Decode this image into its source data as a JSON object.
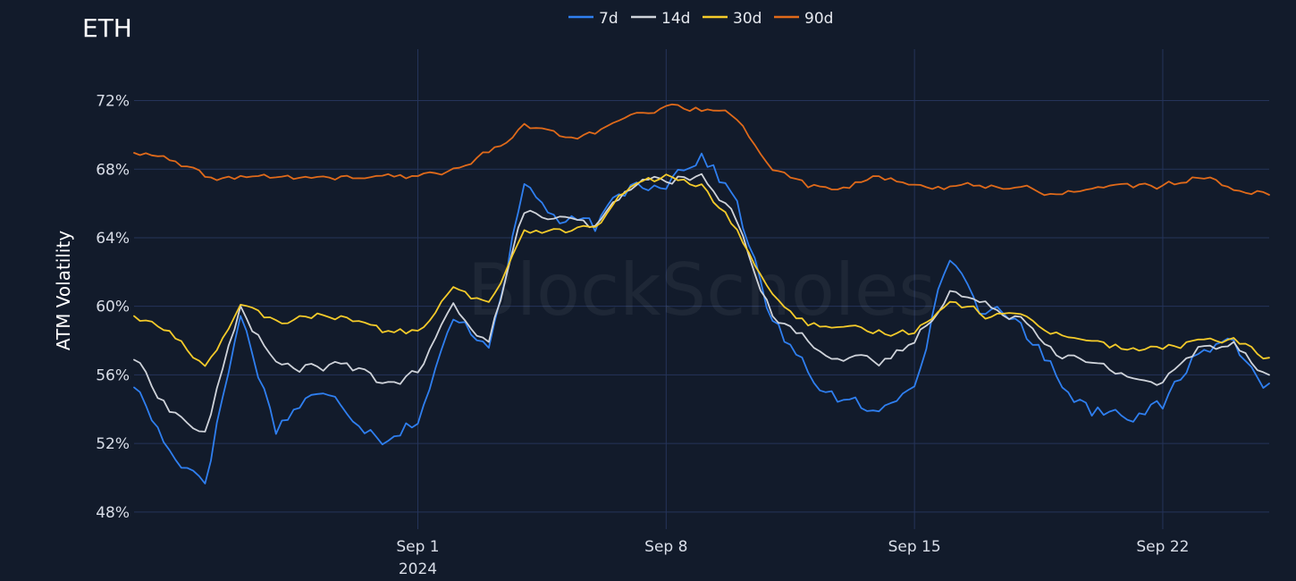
{
  "chart_data": {
    "type": "line",
    "title": "ETH",
    "ylabel": "ATM Volatility",
    "xlabel": "",
    "watermark": "BlockScholes",
    "ylim": [
      47,
      75
    ],
    "xlim": [
      "2024-08-24",
      "2024-09-25"
    ],
    "yticks": [
      48,
      52,
      56,
      60,
      64,
      68,
      72
    ],
    "ytick_labels": [
      "48%",
      "52%",
      "56%",
      "60%",
      "64%",
      "68%",
      "72%"
    ],
    "xticks": [
      "2024-09-01",
      "2024-09-08",
      "2024-09-15",
      "2024-09-22"
    ],
    "xtick_labels": [
      "Sep 1",
      "Sep 8",
      "Sep 15",
      "Sep 22"
    ],
    "xtick_sublabel": "2024",
    "legend_position": "top-center",
    "grid": true,
    "x": [
      "2024-08-24",
      "2024-08-25",
      "2024-08-26",
      "2024-08-27",
      "2024-08-28",
      "2024-08-29",
      "2024-08-30",
      "2024-08-31",
      "2024-09-01",
      "2024-09-02",
      "2024-09-03",
      "2024-09-04",
      "2024-09-05",
      "2024-09-06",
      "2024-09-07",
      "2024-09-08",
      "2024-09-09",
      "2024-09-10",
      "2024-09-11",
      "2024-09-12",
      "2024-09-13",
      "2024-09-14",
      "2024-09-15",
      "2024-09-16",
      "2024-09-17",
      "2024-09-18",
      "2024-09-19",
      "2024-09-20",
      "2024-09-21",
      "2024-09-22",
      "2024-09-23",
      "2024-09-24",
      "2024-09-25"
    ],
    "series": [
      {
        "name": "7d",
        "color": "#2f7ff0",
        "values": [
          55.5,
          51.5,
          50.0,
          59.5,
          53.0,
          55.0,
          54.0,
          52.5,
          53.5,
          59.0,
          58.0,
          67.0,
          65.0,
          64.5,
          67.0,
          67.5,
          69.0,
          66.0,
          59.0,
          56.0,
          54.5,
          53.5,
          56.0,
          63.0,
          59.5,
          59.0,
          56.0,
          54.0,
          54.0,
          54.0,
          57.5,
          58.0,
          55.5
        ]
      },
      {
        "name": "14d",
        "color": "#cfd3da",
        "values": [
          57.0,
          54.0,
          52.5,
          60.0,
          56.5,
          56.5,
          56.5,
          55.5,
          56.0,
          60.0,
          58.0,
          65.5,
          65.0,
          64.5,
          67.0,
          67.5,
          67.5,
          65.0,
          59.5,
          58.0,
          57.0,
          56.5,
          58.0,
          61.0,
          60.0,
          59.5,
          57.5,
          56.5,
          56.0,
          55.5,
          57.5,
          58.0,
          56.0
        ]
      },
      {
        "name": "30d",
        "color": "#f5cb2a",
        "values": [
          59.5,
          58.5,
          56.5,
          60.0,
          59.0,
          59.5,
          59.5,
          58.5,
          58.5,
          61.0,
          60.0,
          64.5,
          64.5,
          64.5,
          67.0,
          67.5,
          67.0,
          64.5,
          60.5,
          59.0,
          58.5,
          58.5,
          58.5,
          60.5,
          59.5,
          59.5,
          58.5,
          58.0,
          57.5,
          57.5,
          58.0,
          58.0,
          57.0
        ]
      },
      {
        "name": "90d",
        "color": "#e06a1a",
        "values": [
          69.0,
          68.5,
          67.5,
          67.5,
          67.5,
          67.5,
          67.5,
          67.5,
          67.5,
          68.0,
          69.0,
          70.5,
          70.0,
          70.0,
          71.0,
          71.5,
          71.5,
          71.0,
          68.0,
          67.0,
          67.0,
          67.5,
          67.0,
          67.0,
          67.0,
          67.0,
          66.5,
          67.0,
          67.0,
          67.0,
          67.5,
          67.0,
          66.5
        ]
      }
    ]
  }
}
